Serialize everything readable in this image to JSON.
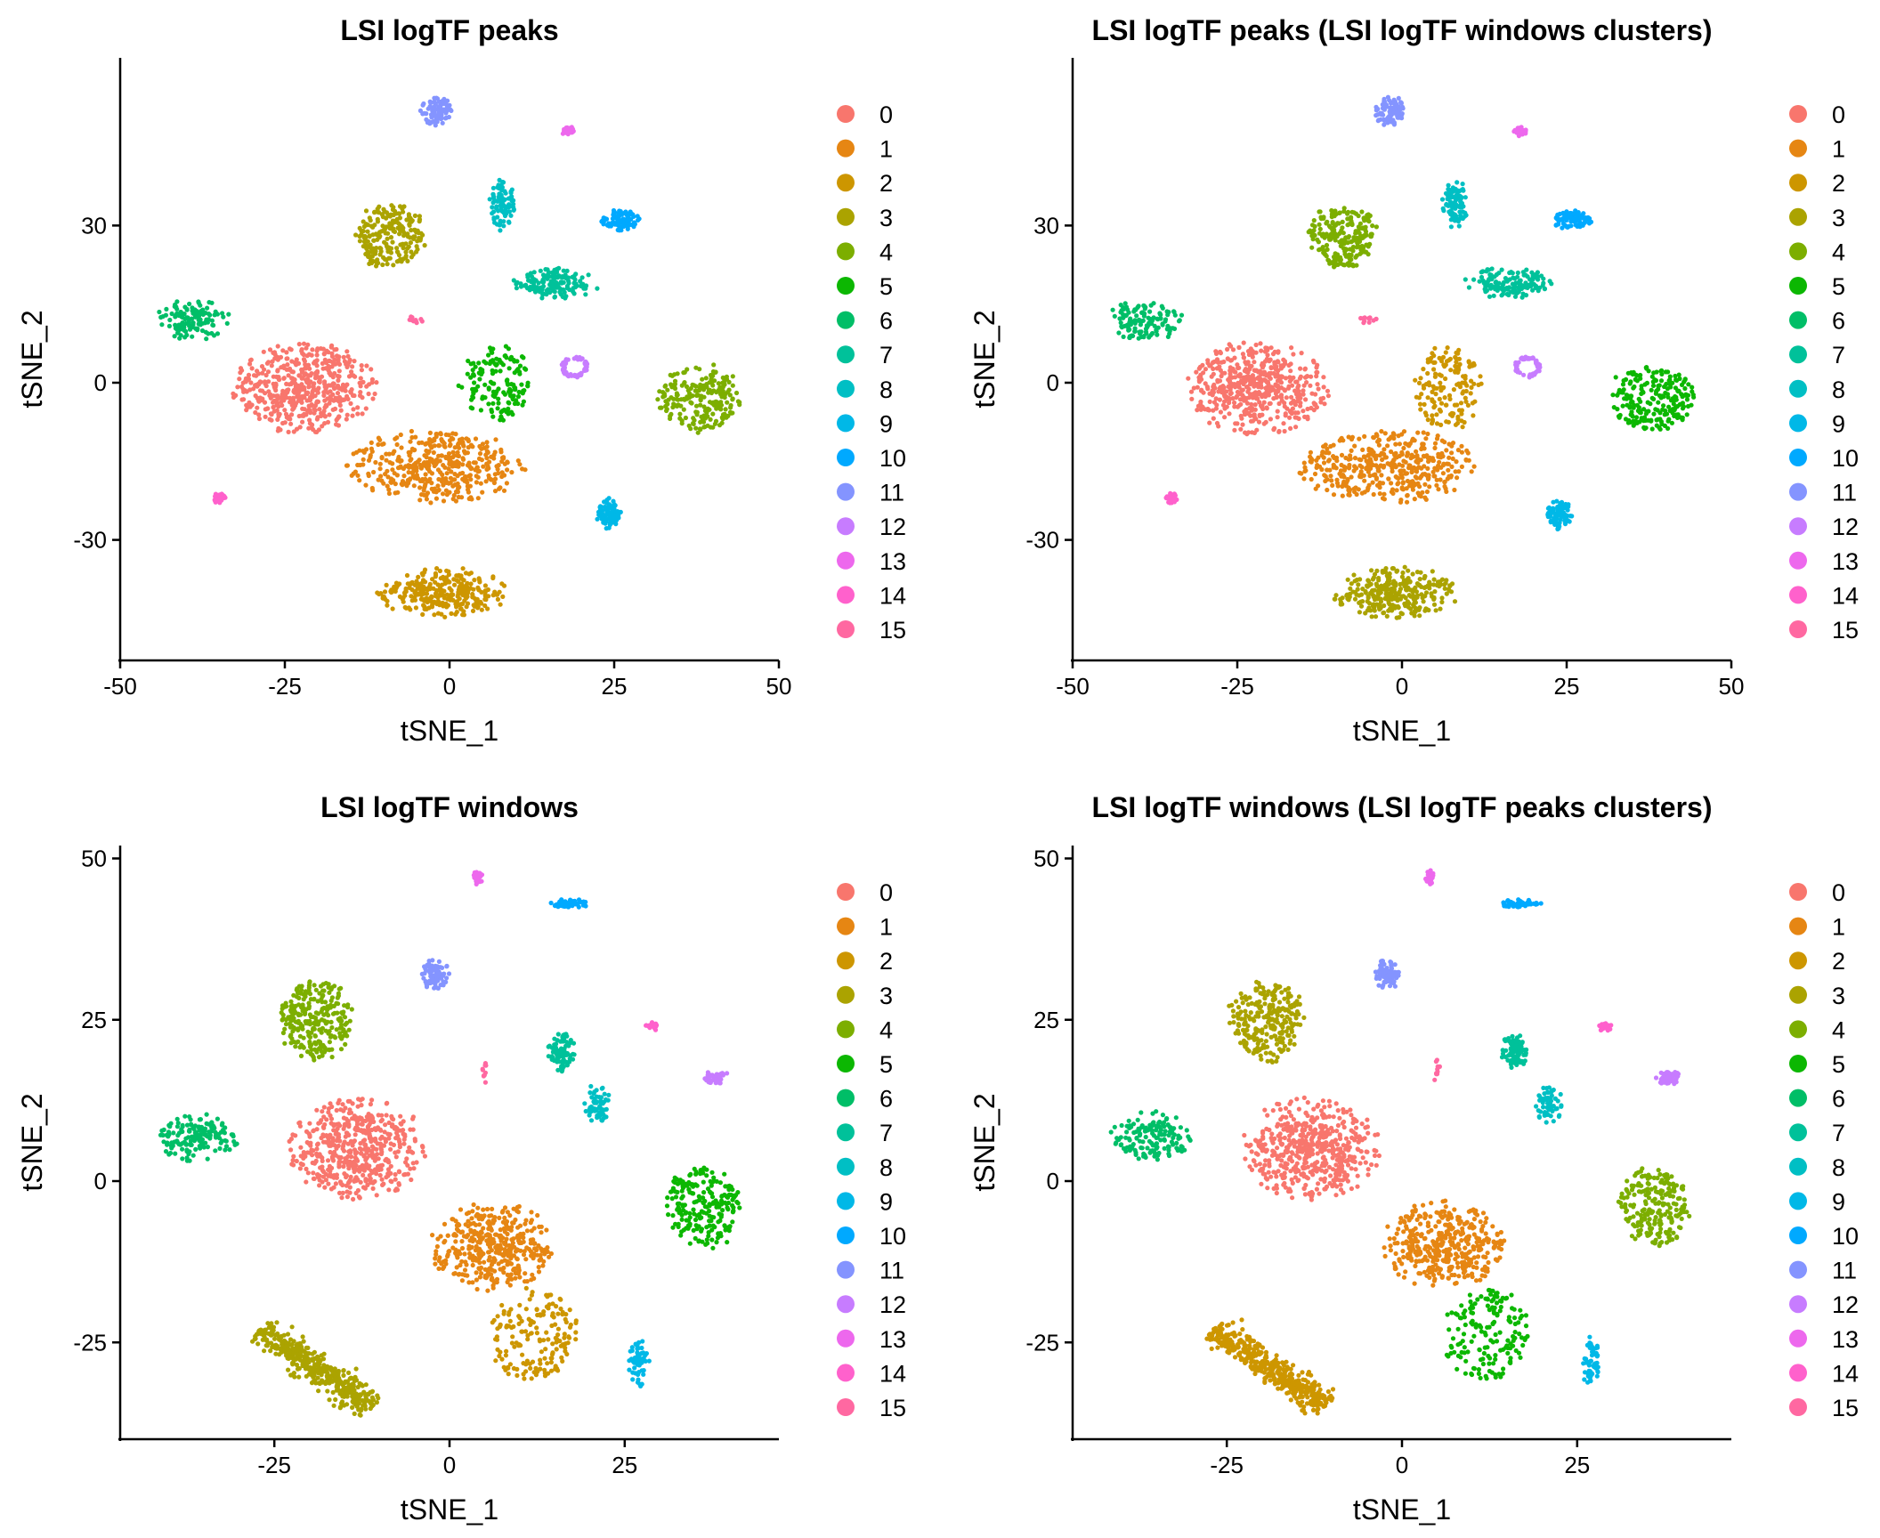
{
  "palette": [
    "#F8766D",
    "#E68613",
    "#CD9600",
    "#ABA300",
    "#7CAE00",
    "#0CB702",
    "#00BE67",
    "#00C19A",
    "#00BFC4",
    "#00B8E7",
    "#00A9FF",
    "#8494FF",
    "#C77CFF",
    "#ED68ED",
    "#FF61CC",
    "#FF68A1"
  ],
  "legend_labels": [
    "0",
    "1",
    "2",
    "3",
    "4",
    "5",
    "6",
    "7",
    "8",
    "9",
    "10",
    "11",
    "12",
    "13",
    "14",
    "15"
  ],
  "chart_data": [
    {
      "type": "scatter",
      "title": "LSI logTF peaks",
      "xlabel": "tSNE_1",
      "ylabel": "tSNE_2",
      "xlim": [
        -50,
        50
      ],
      "ylim": [
        -53,
        62
      ],
      "xticks": [
        -50,
        -25,
        0,
        25,
        50
      ],
      "yticks": [
        -30,
        0,
        30
      ],
      "legend": "right",
      "clusters": [
        {
          "name": "0",
          "color_index": 0,
          "cx": -22,
          "cy": -1,
          "rx": 11,
          "ry": 9,
          "n": 520,
          "shape": "ellipse"
        },
        {
          "name": "1",
          "color_index": 1,
          "cx": -2,
          "cy": -16,
          "rx": 14,
          "ry": 7,
          "n": 420,
          "shape": "ellipse"
        },
        {
          "name": "2",
          "color_index": 2,
          "cx": -1,
          "cy": -40,
          "rx": 10,
          "ry": 5,
          "n": 300,
          "shape": "ellipse"
        },
        {
          "name": "3",
          "color_index": 3,
          "cx": -9,
          "cy": 28,
          "rx": 5,
          "ry": 6,
          "n": 220,
          "shape": "blob"
        },
        {
          "name": "4",
          "color_index": 4,
          "cx": 38,
          "cy": -3,
          "rx": 6,
          "ry": 6,
          "n": 220,
          "shape": "blob"
        },
        {
          "name": "5",
          "color_index": 5,
          "cx": 7,
          "cy": 0,
          "rx": 5,
          "ry": 7,
          "n": 150,
          "shape": "blob"
        },
        {
          "name": "6",
          "color_index": 6,
          "cx": -39,
          "cy": 12,
          "rx": 6,
          "ry": 4,
          "n": 130,
          "shape": "ellipse"
        },
        {
          "name": "7",
          "color_index": 7,
          "cx": 16,
          "cy": 19,
          "rx": 7,
          "ry": 3,
          "n": 140,
          "shape": "ellipse"
        },
        {
          "name": "8",
          "color_index": 8,
          "cx": 8,
          "cy": 34,
          "rx": 2,
          "ry": 5,
          "n": 90,
          "shape": "ellipse"
        },
        {
          "name": "9",
          "color_index": 9,
          "cx": 24,
          "cy": -25,
          "rx": 2,
          "ry": 3,
          "n": 80,
          "shape": "ellipse"
        },
        {
          "name": "10",
          "color_index": 10,
          "cx": 26,
          "cy": 31,
          "rx": 3,
          "ry": 2,
          "n": 85,
          "shape": "ellipse"
        },
        {
          "name": "11",
          "color_index": 11,
          "cx": -2,
          "cy": 52,
          "rx": 2.5,
          "ry": 3,
          "n": 80,
          "shape": "ellipse"
        },
        {
          "name": "12",
          "color_index": 12,
          "cx": 19,
          "cy": 3,
          "rx": 2,
          "ry": 2,
          "n": 60,
          "shape": "ring"
        },
        {
          "name": "13",
          "color_index": 13,
          "cx": 18,
          "cy": 48,
          "rx": 1,
          "ry": 1,
          "n": 30,
          "shape": "ellipse"
        },
        {
          "name": "14",
          "color_index": 14,
          "cx": -35,
          "cy": -22,
          "rx": 1,
          "ry": 1,
          "n": 30,
          "shape": "ellipse"
        },
        {
          "name": "15",
          "color_index": 15,
          "cx": -5,
          "cy": 12,
          "rx": 1.5,
          "ry": 0.8,
          "n": 12,
          "shape": "ellipse"
        }
      ]
    },
    {
      "type": "scatter",
      "title": "LSI logTF peaks (LSI logTF windows clusters)",
      "xlabel": "tSNE_1",
      "ylabel": "tSNE_2",
      "xlim": [
        -50,
        50
      ],
      "ylim": [
        -53,
        62
      ],
      "xticks": [
        -50,
        -25,
        0,
        25,
        50
      ],
      "yticks": [
        -30,
        0,
        30
      ],
      "legend": "right",
      "clusters": [
        {
          "name": "0",
          "color_index": 0,
          "cx": -22,
          "cy": -1,
          "rx": 11,
          "ry": 9,
          "n": 520,
          "shape": "ellipse"
        },
        {
          "name": "1",
          "color_index": 1,
          "cx": -2,
          "cy": -16,
          "rx": 14,
          "ry": 7,
          "n": 420,
          "shape": "ellipse"
        },
        {
          "name": "2",
          "color_index": 2,
          "cx": 7,
          "cy": -1,
          "rx": 5,
          "ry": 8,
          "n": 150,
          "shape": "blob"
        },
        {
          "name": "3",
          "color_index": 3,
          "cx": -1,
          "cy": -40,
          "rx": 10,
          "ry": 5,
          "n": 300,
          "shape": "ellipse"
        },
        {
          "name": "4",
          "color_index": 4,
          "cx": -9,
          "cy": 28,
          "rx": 5,
          "ry": 6,
          "n": 220,
          "shape": "blob"
        },
        {
          "name": "5",
          "color_index": 5,
          "cx": 38,
          "cy": -3,
          "rx": 6,
          "ry": 6,
          "n": 220,
          "shape": "blob"
        },
        {
          "name": "6",
          "color_index": 6,
          "cx": -39,
          "cy": 12,
          "rx": 6,
          "ry": 4,
          "n": 130,
          "shape": "ellipse"
        },
        {
          "name": "7",
          "color_index": 7,
          "cx": 16,
          "cy": 19,
          "rx": 7,
          "ry": 3,
          "n": 140,
          "shape": "ellipse"
        },
        {
          "name": "8",
          "color_index": 8,
          "cx": 8,
          "cy": 34,
          "rx": 2,
          "ry": 5,
          "n": 90,
          "shape": "ellipse"
        },
        {
          "name": "9",
          "color_index": 9,
          "cx": 24,
          "cy": -25,
          "rx": 2,
          "ry": 3,
          "n": 80,
          "shape": "ellipse"
        },
        {
          "name": "10",
          "color_index": 10,
          "cx": 26,
          "cy": 31,
          "rx": 3,
          "ry": 2,
          "n": 85,
          "shape": "ellipse"
        },
        {
          "name": "11",
          "color_index": 11,
          "cx": -2,
          "cy": 52,
          "rx": 2.5,
          "ry": 3,
          "n": 80,
          "shape": "ellipse"
        },
        {
          "name": "12",
          "color_index": 12,
          "cx": 19,
          "cy": 3,
          "rx": 2,
          "ry": 2,
          "n": 60,
          "shape": "ring"
        },
        {
          "name": "13",
          "color_index": 13,
          "cx": 18,
          "cy": 48,
          "rx": 1,
          "ry": 1,
          "n": 30,
          "shape": "ellipse"
        },
        {
          "name": "14",
          "color_index": 14,
          "cx": -35,
          "cy": -22,
          "rx": 1,
          "ry": 1,
          "n": 30,
          "shape": "ellipse"
        },
        {
          "name": "15",
          "color_index": 15,
          "cx": -5,
          "cy": 12,
          "rx": 1.5,
          "ry": 0.8,
          "n": 12,
          "shape": "ellipse"
        }
      ]
    },
    {
      "type": "scatter",
      "title": "LSI logTF windows",
      "xlabel": "tSNE_1",
      "ylabel": "tSNE_2",
      "xlim": [
        -47,
        47
      ],
      "ylim": [
        -40,
        52
      ],
      "xticks": [
        -25,
        0,
        25
      ],
      "yticks": [
        -25,
        0,
        25,
        50
      ],
      "legend": "right",
      "clusters": [
        {
          "name": "0",
          "color_index": 0,
          "cx": -13,
          "cy": 5,
          "rx": 10,
          "ry": 8,
          "n": 520,
          "shape": "ellipse"
        },
        {
          "name": "1",
          "color_index": 1,
          "cx": 6,
          "cy": -10,
          "rx": 9,
          "ry": 7,
          "n": 400,
          "shape": "ellipse"
        },
        {
          "name": "2",
          "color_index": 2,
          "cx": 12,
          "cy": -24,
          "rx": 6,
          "ry": 7,
          "n": 170,
          "shape": "blob"
        },
        {
          "name": "3",
          "color_index": 3,
          "cx": -19,
          "cy": -29,
          "rx": 8,
          "ry": 6,
          "n": 420,
          "shape": "diag"
        },
        {
          "name": "4",
          "color_index": 4,
          "cx": -19,
          "cy": 25,
          "rx": 5,
          "ry": 6,
          "n": 260,
          "shape": "blob"
        },
        {
          "name": "5",
          "color_index": 5,
          "cx": 36,
          "cy": -4,
          "rx": 5,
          "ry": 6,
          "n": 220,
          "shape": "blob"
        },
        {
          "name": "6",
          "color_index": 6,
          "cx": -36,
          "cy": 7,
          "rx": 6,
          "ry": 4,
          "n": 160,
          "shape": "ellipse"
        },
        {
          "name": "7",
          "color_index": 7,
          "cx": 16,
          "cy": 20,
          "rx": 2,
          "ry": 3,
          "n": 90,
          "shape": "ellipse"
        },
        {
          "name": "8",
          "color_index": 8,
          "cx": 21,
          "cy": 12,
          "rx": 2,
          "ry": 3,
          "n": 60,
          "shape": "ellipse"
        },
        {
          "name": "9",
          "color_index": 9,
          "cx": 27,
          "cy": -28,
          "rx": 1.5,
          "ry": 4,
          "n": 60,
          "shape": "ellipse"
        },
        {
          "name": "10",
          "color_index": 10,
          "cx": 17,
          "cy": 43,
          "rx": 3,
          "ry": 0.7,
          "n": 55,
          "shape": "ellipse"
        },
        {
          "name": "11",
          "color_index": 11,
          "cx": -2,
          "cy": 32,
          "rx": 2,
          "ry": 2.5,
          "n": 80,
          "shape": "ellipse"
        },
        {
          "name": "12",
          "color_index": 12,
          "cx": 38,
          "cy": 16,
          "rx": 2,
          "ry": 1.2,
          "n": 50,
          "shape": "ellipse"
        },
        {
          "name": "13",
          "color_index": 13,
          "cx": 4,
          "cy": 47,
          "rx": 0.7,
          "ry": 1.2,
          "n": 25,
          "shape": "ellipse"
        },
        {
          "name": "14",
          "color_index": 14,
          "cx": 29,
          "cy": 24,
          "rx": 1,
          "ry": 0.8,
          "n": 20,
          "shape": "ellipse"
        },
        {
          "name": "15",
          "color_index": 15,
          "cx": 5,
          "cy": 17,
          "rx": 0.5,
          "ry": 2,
          "n": 10,
          "shape": "ellipse"
        }
      ]
    },
    {
      "type": "scatter",
      "title": "LSI logTF windows (LSI logTF peaks clusters)",
      "xlabel": "tSNE_1",
      "ylabel": "tSNE_2",
      "xlim": [
        -47,
        47
      ],
      "ylim": [
        -40,
        52
      ],
      "xticks": [
        -25,
        0,
        25
      ],
      "yticks": [
        -25,
        0,
        25,
        50
      ],
      "legend": "right",
      "clusters": [
        {
          "name": "0",
          "color_index": 0,
          "cx": -13,
          "cy": 5,
          "rx": 10,
          "ry": 8,
          "n": 520,
          "shape": "ellipse"
        },
        {
          "name": "1",
          "color_index": 1,
          "cx": 6,
          "cy": -10,
          "rx": 9,
          "ry": 7,
          "n": 400,
          "shape": "ellipse"
        },
        {
          "name": "2",
          "color_index": 2,
          "cx": -19,
          "cy": -29,
          "rx": 8,
          "ry": 6,
          "n": 420,
          "shape": "diag"
        },
        {
          "name": "3",
          "color_index": 3,
          "cx": -19,
          "cy": 25,
          "rx": 5,
          "ry": 6,
          "n": 260,
          "shape": "blob"
        },
        {
          "name": "4",
          "color_index": 4,
          "cx": 36,
          "cy": -4,
          "rx": 5,
          "ry": 6,
          "n": 220,
          "shape": "blob"
        },
        {
          "name": "5",
          "color_index": 5,
          "cx": 12,
          "cy": -24,
          "rx": 6,
          "ry": 7,
          "n": 170,
          "shape": "blob"
        },
        {
          "name": "6",
          "color_index": 6,
          "cx": -36,
          "cy": 7,
          "rx": 6,
          "ry": 4,
          "n": 160,
          "shape": "ellipse"
        },
        {
          "name": "7",
          "color_index": 7,
          "cx": 16,
          "cy": 20,
          "rx": 2,
          "ry": 3,
          "n": 90,
          "shape": "ellipse"
        },
        {
          "name": "8",
          "color_index": 8,
          "cx": 21,
          "cy": 12,
          "rx": 2,
          "ry": 3,
          "n": 60,
          "shape": "ellipse"
        },
        {
          "name": "9",
          "color_index": 9,
          "cx": 27,
          "cy": -28,
          "rx": 1.5,
          "ry": 4,
          "n": 60,
          "shape": "ellipse"
        },
        {
          "name": "10",
          "color_index": 10,
          "cx": 17,
          "cy": 43,
          "rx": 3,
          "ry": 0.7,
          "n": 55,
          "shape": "ellipse"
        },
        {
          "name": "11",
          "color_index": 11,
          "cx": -2,
          "cy": 32,
          "rx": 2,
          "ry": 2.5,
          "n": 80,
          "shape": "ellipse"
        },
        {
          "name": "12",
          "color_index": 12,
          "cx": 38,
          "cy": 16,
          "rx": 2,
          "ry": 1.2,
          "n": 50,
          "shape": "ellipse"
        },
        {
          "name": "13",
          "color_index": 13,
          "cx": 4,
          "cy": 47,
          "rx": 0.7,
          "ry": 1.2,
          "n": 25,
          "shape": "ellipse"
        },
        {
          "name": "14",
          "color_index": 14,
          "cx": 29,
          "cy": 24,
          "rx": 1,
          "ry": 0.8,
          "n": 20,
          "shape": "ellipse"
        },
        {
          "name": "15",
          "color_index": 15,
          "cx": 5,
          "cy": 17,
          "rx": 0.5,
          "ry": 2,
          "n": 10,
          "shape": "ellipse"
        }
      ]
    }
  ]
}
